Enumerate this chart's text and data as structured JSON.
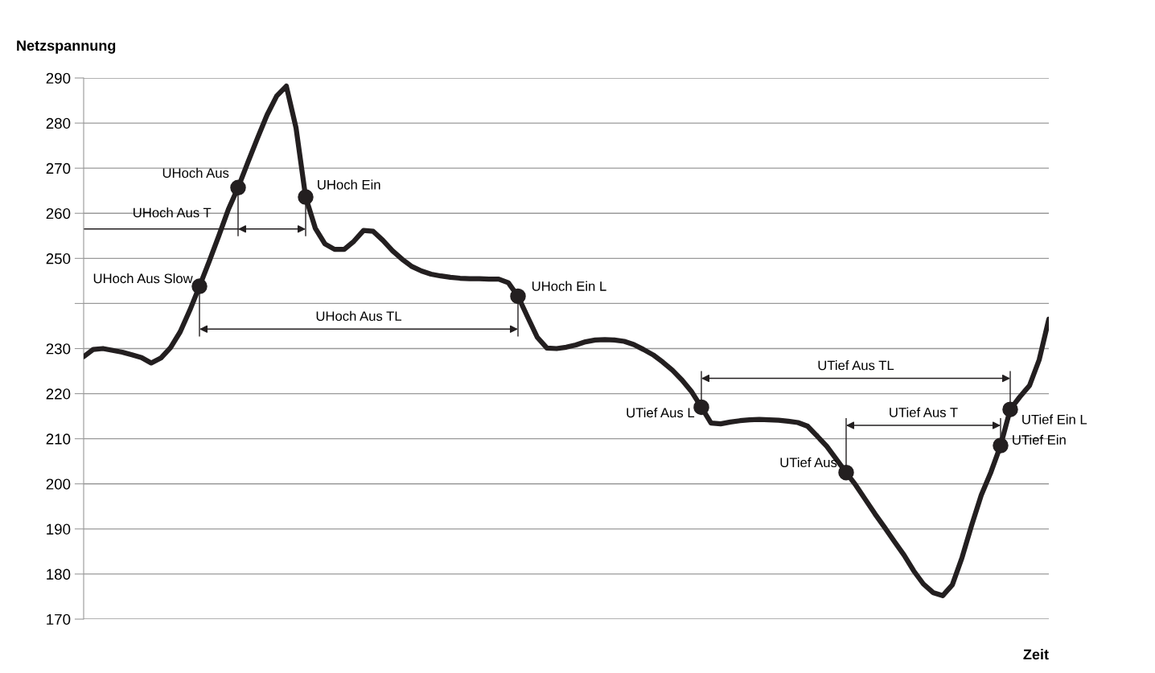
{
  "chart_data": {
    "type": "line",
    "ylabel": "Netzspannung",
    "xlabel": "Zeit",
    "categories": [
      null,
      null,
      null,
      null,
      null,
      null,
      null,
      null,
      null,
      null,
      null,
      null,
      null,
      null,
      null,
      null,
      null,
      null,
      null,
      null,
      null,
      null,
      null,
      null,
      null,
      null,
      null,
      null,
      null,
      null,
      null,
      null,
      null,
      null,
      null,
      null,
      null,
      null,
      null,
      null,
      null,
      null,
      null,
      null,
      null,
      null,
      null,
      null,
      null,
      null,
      null,
      null,
      null,
      null,
      null,
      null,
      null,
      null,
      null,
      null,
      null,
      null,
      null,
      null,
      null,
      null,
      null,
      null,
      null,
      null,
      null,
      null,
      null,
      null,
      null,
      null,
      null,
      null,
      null,
      null,
      null,
      null,
      null,
      null,
      null,
      null,
      null,
      null,
      null,
      null,
      null,
      null,
      null,
      null,
      null,
      null,
      null,
      null,
      null,
      null,
      null
    ],
    "series": [
      {
        "color": "#231f20",
        "values": [
          228.2,
          229.8,
          230.0,
          229.6,
          229.2,
          228.6,
          228.0,
          226.8,
          227.9,
          230.2,
          233.7,
          238.5,
          243.8,
          249.3,
          255.0,
          260.9,
          265.7,
          271.2,
          276.6,
          281.8,
          286.0,
          288.2,
          279.0,
          263.6,
          256.7,
          253.2,
          252.0,
          252.0,
          253.8,
          256.2,
          256.0,
          254.0,
          251.7,
          249.8,
          248.2,
          247.2,
          246.5,
          246.1,
          245.8,
          245.6,
          245.5,
          245.5,
          245.4,
          245.4,
          244.6,
          241.6,
          237.0,
          232.5,
          230.1,
          230.0,
          230.3,
          230.8,
          231.5,
          231.9,
          232.0,
          231.9,
          231.6,
          230.9,
          229.8,
          228.6,
          227.0,
          225.2,
          223.0,
          220.4,
          217.0,
          213.5,
          213.3,
          213.7,
          214.0,
          214.2,
          214.3,
          214.2,
          214.1,
          213.9,
          213.6,
          212.8,
          210.6,
          208.3,
          205.4,
          202.5,
          199.7,
          196.5,
          193.3,
          190.3,
          187.2,
          184.2,
          180.7,
          177.8,
          175.9,
          175.2,
          177.6,
          183.6,
          190.8,
          197.5,
          202.6,
          208.5,
          216.5,
          219.3,
          221.8,
          227.5,
          236.5
        ]
      },
      {
        "type": "scatter",
        "color": "#231f20",
        "values": [
          null,
          null,
          null,
          null,
          null,
          null,
          null,
          null,
          null,
          null,
          null,
          null,
          243.8,
          null,
          null,
          null,
          265.7,
          null,
          null,
          null,
          null,
          null,
          null,
          263.6,
          null,
          null,
          null,
          null,
          null,
          null,
          null,
          null,
          null,
          null,
          null,
          null,
          null,
          null,
          null,
          null,
          null,
          null,
          null,
          null,
          null,
          241.6,
          null,
          null,
          null,
          null,
          null,
          null,
          null,
          null,
          null,
          null,
          null,
          null,
          null,
          null,
          null,
          null,
          null,
          null,
          217.0,
          null,
          null,
          null,
          null,
          null,
          null,
          null,
          null,
          null,
          null,
          null,
          null,
          null,
          null,
          202.5,
          null,
          null,
          null,
          null,
          null,
          null,
          null,
          null,
          null,
          null,
          null,
          null,
          null,
          null,
          null,
          208.5,
          216.5,
          null,
          null,
          null,
          null
        ]
      }
    ],
    "annotations": [
      "UHoch Aus Slow",
      "UHoch Aus",
      "UHoch Ein",
      "UHoch Ein L",
      "UTief Aus L",
      "UTief Aus",
      "UTief Ein",
      "UTief Ein L",
      "UHoch Aus T",
      "UHoch Aus TL",
      "UTief Aus TL",
      "UTief Aus T"
    ],
    "ylim": [
      170,
      290
    ],
    "yticks": [
      170,
      180,
      190,
      200,
      210,
      220,
      230,
      {
        "value": 240,
        "label": null
      },
      250,
      260,
      270,
      280,
      290
    ],
    "grid": "y",
    "tick_labels": "y",
    "line_style": "solid"
  }
}
